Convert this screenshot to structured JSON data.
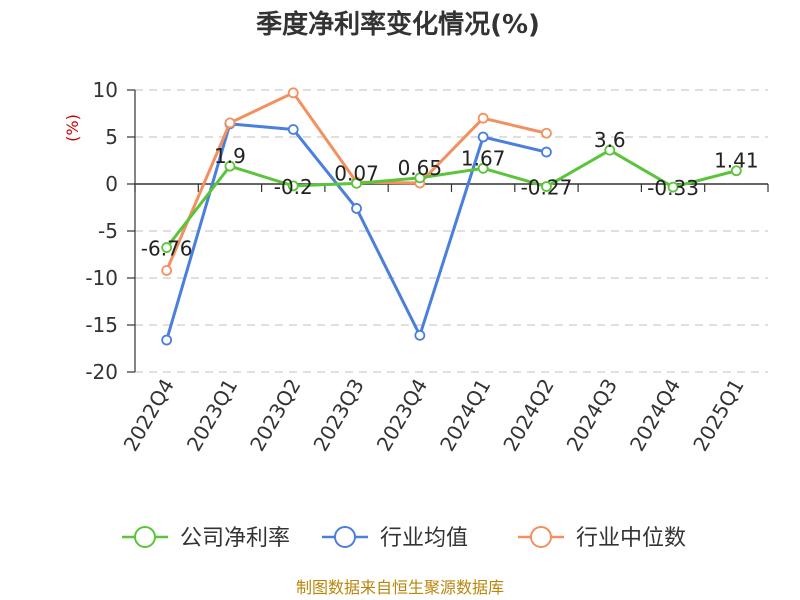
{
  "chart_data": {
    "type": "line",
    "title": "季度净利率变化情况(%)",
    "ylabel": "(%)",
    "categories": [
      "2022Q4",
      "2023Q1",
      "2023Q2",
      "2023Q3",
      "2023Q4",
      "2024Q1",
      "2024Q2",
      "2024Q3",
      "2024Q4",
      "2025Q1"
    ],
    "ylim": [
      -20,
      10
    ],
    "yticks": [
      10,
      5,
      0,
      -5,
      -10,
      -15,
      -20
    ],
    "grid": true,
    "legend_position": "bottom",
    "series": [
      {
        "name": "公司净利率",
        "color": "#5cc43a",
        "values": [
          -6.76,
          1.9,
          -0.2,
          0.07,
          0.65,
          1.67,
          -0.27,
          3.6,
          -0.33,
          1.41
        ],
        "labels": [
          "-6.76",
          "1.9",
          "-0.2",
          "0.07",
          "0.65",
          "1.67",
          "-0.27",
          "3.6",
          "-0.33",
          "1.41"
        ]
      },
      {
        "name": "行业均值",
        "color": "#4a7fdc",
        "values": [
          -16.6,
          6.4,
          5.8,
          -2.6,
          -16.1,
          5.0,
          3.4,
          null,
          null,
          null
        ]
      },
      {
        "name": "行业中位数",
        "color": "#f39060",
        "values": [
          -9.2,
          6.5,
          9.7,
          0.2,
          0.1,
          7.0,
          5.4,
          null,
          null,
          null
        ]
      }
    ]
  },
  "source": "制图数据来自恒生聚源数据库"
}
